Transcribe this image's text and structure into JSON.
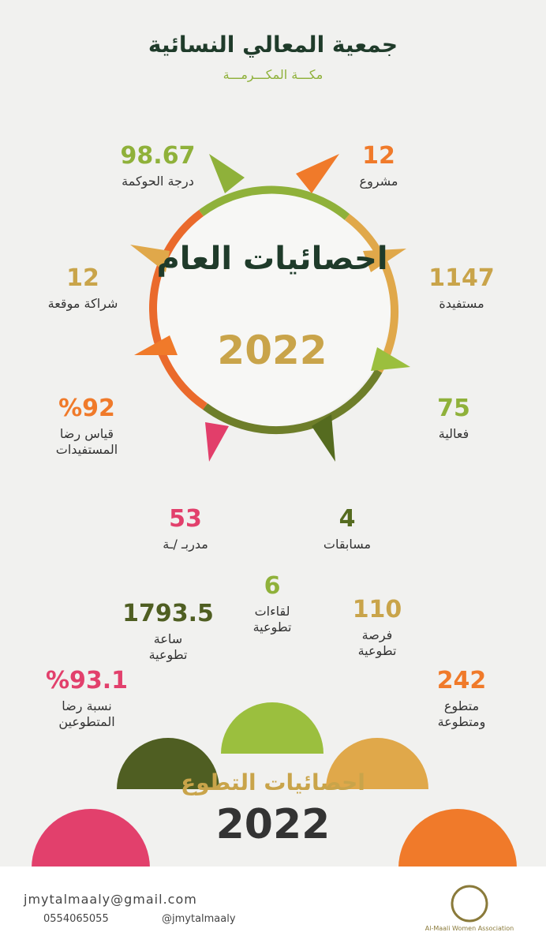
{
  "header": {
    "title": "جمعية المعالي النسائية",
    "subtitle": "مكـــة المكـــرمـــة"
  },
  "annual": {
    "title": "احصائيات العام",
    "year": "2022",
    "stats": [
      {
        "value": "12",
        "lines": [
          "مشروع"
        ]
      },
      {
        "value": "1147",
        "lines": [
          "مستفيدة"
        ]
      },
      {
        "value": "75",
        "lines": [
          "فعالية"
        ]
      },
      {
        "value": "4",
        "lines": [
          "مسابقات"
        ]
      },
      {
        "value": "53",
        "lines": [
          "مدربـ /ـة"
        ]
      },
      {
        "value": "%92",
        "lines": [
          "قياس رضا",
          "المستفيدات"
        ]
      },
      {
        "value": "12",
        "lines": [
          "شراكة موقعة"
        ]
      },
      {
        "value": "98.67",
        "lines": [
          "درجة الحوكمة"
        ]
      }
    ]
  },
  "volunteer": {
    "title": "احصائيات التطوع",
    "year": "2022",
    "items": [
      {
        "value": "%93.1",
        "lines": [
          "نسبة رضا",
          "المتطوعين"
        ]
      },
      {
        "value": "1793.5",
        "lines": [
          "ساعة",
          "تطوعية"
        ]
      },
      {
        "value": "6",
        "lines": [
          "لقاءات",
          "تطوعية"
        ]
      },
      {
        "value": "110",
        "lines": [
          "فرصة",
          "تطوعية"
        ]
      },
      {
        "value": "242",
        "lines": [
          "متطوع",
          "ومتطوعة"
        ]
      }
    ]
  },
  "footer": {
    "email": "jmytalmaaly@gmail.com",
    "phone": "0554065055",
    "handle": "@jmytalmaaly",
    "logo_caption": "Al-Maali Women Association"
  }
}
